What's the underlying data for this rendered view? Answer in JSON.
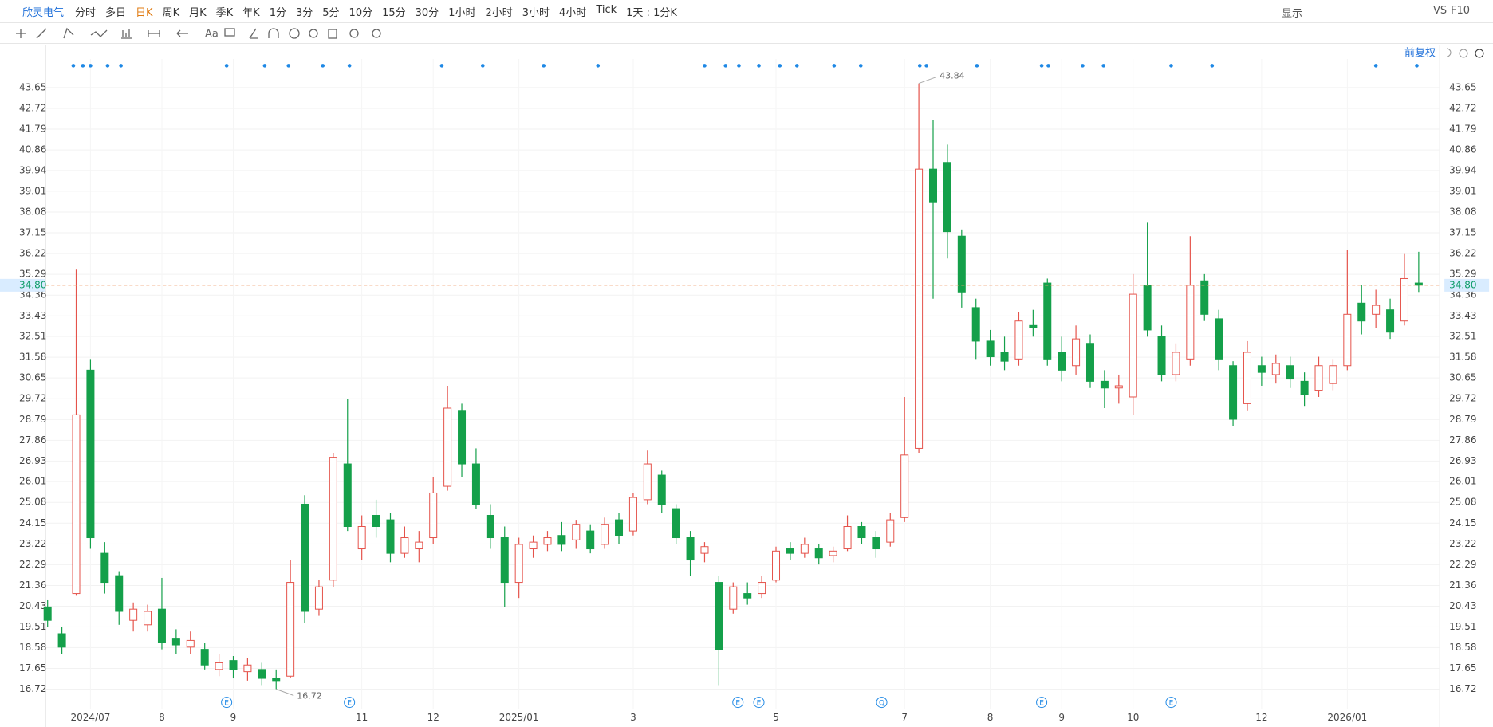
{
  "toolbar": {
    "stock": "欣灵电气",
    "periods": [
      "分时",
      "多日",
      "日K",
      "周K",
      "月K",
      "季K",
      "年K",
      "1分",
      "3分",
      "5分",
      "10分",
      "15分",
      "30分",
      "1小时",
      "2小时",
      "3小时",
      "4小时",
      "Tick"
    ],
    "interval": "1天 : 1分K",
    "display": "显示",
    "vs": "VS",
    "f10": "F10",
    "font_tool": "Aa"
  },
  "chart_data": {
    "type": "candlestick",
    "categories": [
      null,
      null,
      null,
      "2024/07",
      null,
      null,
      null,
      null,
      "8",
      null,
      null,
      null,
      null,
      "9",
      null,
      null,
      null,
      null,
      null,
      null,
      null,
      null,
      "11",
      null,
      null,
      null,
      null,
      "12",
      null,
      null,
      null,
      null,
      null,
      "2025/01",
      null,
      null,
      null,
      null,
      null,
      null,
      null,
      "3",
      null,
      null,
      null,
      null,
      null,
      null,
      null,
      null,
      null,
      "5",
      null,
      null,
      null,
      null,
      null,
      null,
      null,
      null,
      "7",
      null,
      null,
      null,
      null,
      null,
      "8",
      null,
      null,
      null,
      null,
      "9",
      null,
      null,
      null,
      null,
      "10",
      null,
      null,
      null,
      null,
      null,
      null,
      null,
      null,
      "12",
      null,
      null,
      null,
      null,
      null,
      "2026/01",
      null,
      null,
      null,
      null,
      null
    ],
    "open": [
      20.4,
      19.2,
      21.0,
      31.0,
      22.8,
      21.8,
      19.8,
      19.6,
      20.3,
      19.0,
      18.6,
      18.5,
      17.6,
      18.0,
      17.5,
      17.6,
      17.2,
      17.3,
      25.0,
      20.3,
      21.6,
      26.8,
      23.0,
      24.5,
      24.3,
      22.8,
      23.0,
      23.5,
      25.8,
      29.2,
      26.8,
      24.5,
      23.5,
      21.5,
      23.0,
      23.2,
      23.6,
      23.4,
      23.8,
      23.2,
      24.3,
      23.8,
      25.2,
      26.3,
      24.8,
      23.5,
      22.8,
      21.5,
      20.3,
      21.0,
      21.0,
      21.6,
      23.0,
      22.8,
      23.0,
      22.7,
      23.0,
      24.0,
      23.5,
      23.3,
      24.4,
      27.5,
      40.0,
      40.3,
      37.0,
      33.8,
      32.3,
      31.8,
      31.5,
      33.0,
      34.9,
      31.8,
      31.2,
      32.2,
      30.5,
      30.2,
      29.8,
      34.8,
      32.5,
      30.8,
      31.5,
      35.0,
      33.3,
      31.2,
      29.5,
      31.2,
      30.8,
      31.2,
      30.5,
      30.1,
      30.4,
      31.2,
      34.0,
      33.5,
      33.7,
      33.2,
      34.9
    ],
    "high": [
      20.7,
      19.5,
      35.5,
      31.5,
      23.3,
      22.0,
      20.6,
      20.5,
      21.7,
      19.4,
      19.3,
      18.8,
      18.3,
      18.2,
      18.1,
      17.9,
      17.6,
      22.5,
      25.4,
      21.6,
      27.3,
      29.7,
      24.5,
      25.2,
      24.6,
      24.0,
      23.8,
      26.2,
      30.3,
      29.5,
      27.5,
      25.0,
      24.0,
      23.5,
      23.6,
      23.8,
      24.2,
      24.3,
      24.1,
      24.4,
      24.6,
      25.5,
      27.4,
      26.5,
      25.0,
      23.8,
      23.3,
      21.8,
      21.5,
      21.5,
      21.8,
      23.1,
      23.3,
      23.5,
      23.2,
      23.1,
      24.5,
      24.2,
      23.8,
      24.6,
      29.8,
      43.84,
      42.2,
      41.1,
      37.3,
      34.2,
      32.8,
      32.5,
      33.6,
      33.7,
      35.1,
      32.5,
      33.0,
      32.6,
      31.0,
      30.8,
      35.3,
      37.6,
      33.0,
      32.2,
      37.0,
      35.3,
      33.7,
      31.4,
      32.3,
      31.6,
      31.7,
      31.6,
      30.9,
      31.6,
      31.5,
      36.4,
      34.8,
      34.6,
      34.2,
      36.2,
      36.3
    ],
    "low": [
      19.5,
      18.3,
      20.9,
      23.0,
      21.0,
      19.6,
      19.3,
      19.3,
      18.5,
      18.3,
      18.3,
      17.6,
      17.3,
      17.2,
      17.1,
      16.9,
      16.72,
      17.2,
      19.7,
      20.0,
      21.3,
      23.8,
      22.5,
      23.5,
      22.4,
      22.6,
      22.4,
      23.2,
      25.6,
      26.2,
      24.8,
      23.0,
      20.4,
      20.8,
      22.6,
      22.9,
      22.9,
      23.0,
      22.8,
      23.0,
      23.2,
      23.6,
      25.0,
      24.6,
      23.2,
      21.8,
      22.4,
      16.9,
      20.1,
      20.5,
      20.8,
      21.5,
      22.5,
      22.6,
      22.3,
      22.4,
      22.9,
      23.2,
      22.6,
      23.1,
      24.2,
      27.3,
      34.2,
      36.0,
      33.8,
      31.5,
      31.2,
      31.0,
      31.2,
      32.5,
      31.2,
      30.5,
      30.8,
      30.2,
      29.3,
      29.5,
      29.0,
      32.5,
      30.5,
      30.5,
      31.2,
      33.2,
      31.0,
      28.5,
      29.2,
      30.3,
      30.4,
      30.2,
      29.4,
      29.8,
      30.1,
      31.0,
      32.6,
      32.9,
      32.4,
      33.0,
      34.5
    ],
    "close": [
      19.8,
      18.6,
      29.0,
      23.5,
      21.5,
      20.2,
      20.3,
      20.2,
      18.8,
      18.7,
      18.9,
      17.8,
      17.9,
      17.6,
      17.8,
      17.2,
      17.1,
      21.5,
      20.2,
      21.3,
      27.1,
      24.0,
      24.0,
      24.0,
      22.8,
      23.5,
      23.3,
      25.5,
      29.3,
      26.8,
      25.0,
      23.5,
      21.5,
      23.2,
      23.3,
      23.5,
      23.2,
      24.1,
      23.0,
      24.1,
      23.6,
      25.3,
      26.8,
      25.0,
      23.5,
      22.5,
      23.1,
      18.5,
      21.3,
      20.8,
      21.5,
      22.9,
      22.8,
      23.2,
      22.6,
      22.9,
      24.0,
      23.5,
      23.0,
      24.3,
      27.2,
      40.0,
      38.5,
      37.2,
      34.5,
      32.3,
      31.6,
      31.4,
      33.2,
      32.9,
      31.5,
      31.0,
      32.4,
      30.5,
      30.2,
      30.3,
      34.4,
      32.8,
      30.8,
      31.8,
      34.8,
      33.5,
      31.5,
      28.8,
      31.8,
      30.9,
      31.3,
      30.6,
      29.9,
      31.2,
      31.2,
      33.5,
      33.2,
      33.9,
      32.7,
      35.1,
      34.8
    ],
    "ylim": [
      15.83,
      44.93
    ],
    "yticks": [
      16.72,
      17.65,
      18.58,
      19.51,
      20.43,
      21.36,
      22.29,
      23.22,
      24.15,
      25.08,
      26.01,
      26.93,
      27.86,
      28.79,
      29.72,
      30.65,
      31.58,
      32.51,
      33.43,
      34.36,
      35.29,
      36.22,
      37.15,
      38.08,
      39.01,
      39.94,
      40.86,
      41.79,
      42.72,
      43.65
    ],
    "grid": true,
    "last_price": {
      "value": 34.8,
      "label": "34.80"
    },
    "adjust": "前复权",
    "events": [
      "E",
      "E",
      "E",
      "E",
      "Q",
      "E",
      "E"
    ],
    "up_color": "#e5534b",
    "down_color": "#14a04a"
  }
}
